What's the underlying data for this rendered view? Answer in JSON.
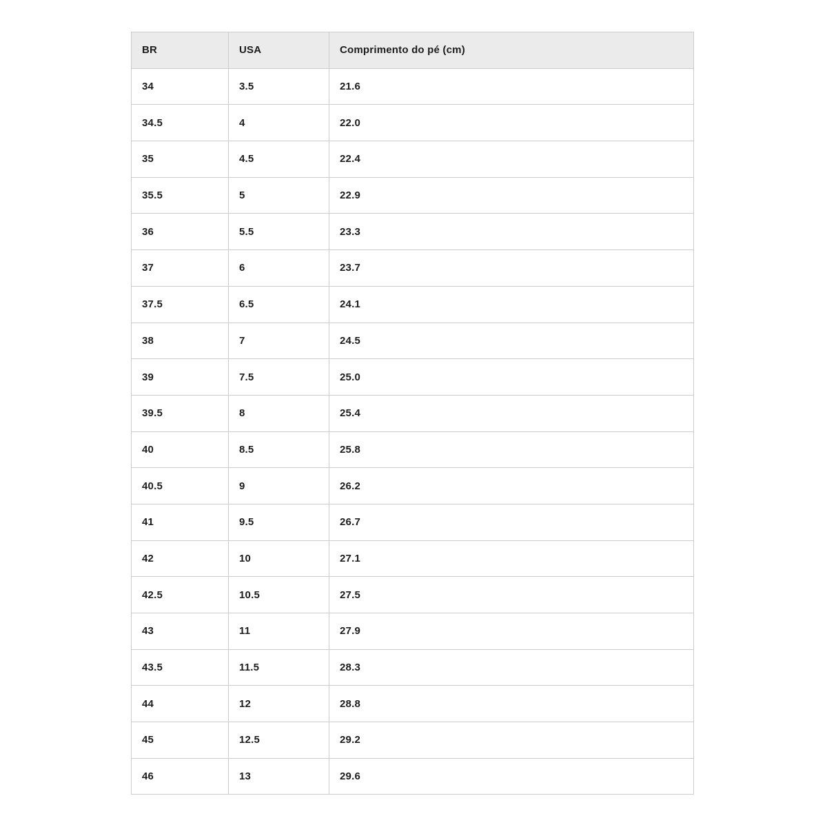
{
  "chart_data": {
    "type": "table",
    "title": "",
    "columns": [
      "BR",
      "USA",
      "Comprimento do pé (cm)"
    ],
    "rows": [
      [
        "34",
        "3.5",
        "21.6"
      ],
      [
        "34.5",
        "4",
        "22.0"
      ],
      [
        "35",
        "4.5",
        "22.4"
      ],
      [
        "35.5",
        "5",
        "22.9"
      ],
      [
        "36",
        "5.5",
        "23.3"
      ],
      [
        "37",
        "6",
        "23.7"
      ],
      [
        "37.5",
        "6.5",
        "24.1"
      ],
      [
        "38",
        "7",
        "24.5"
      ],
      [
        "39",
        "7.5",
        "25.0"
      ],
      [
        "39.5",
        "8",
        "25.4"
      ],
      [
        "40",
        "8.5",
        "25.8"
      ],
      [
        "40.5",
        "9",
        "26.2"
      ],
      [
        "41",
        "9.5",
        "26.7"
      ],
      [
        "42",
        "10",
        "27.1"
      ],
      [
        "42.5",
        "10.5",
        "27.5"
      ],
      [
        "43",
        "11",
        "27.9"
      ],
      [
        "43.5",
        "11.5",
        "28.3"
      ],
      [
        "44",
        "12",
        "28.8"
      ],
      [
        "45",
        "12.5",
        "29.2"
      ],
      [
        "46",
        "13",
        "29.6"
      ]
    ],
    "layout": {
      "grid": "all-borders",
      "header_row": true
    }
  },
  "colors": {
    "header_bg": "#ebebeb",
    "border": "#cccccc",
    "text": "#1c1c1c",
    "page_bg": "#ffffff"
  }
}
